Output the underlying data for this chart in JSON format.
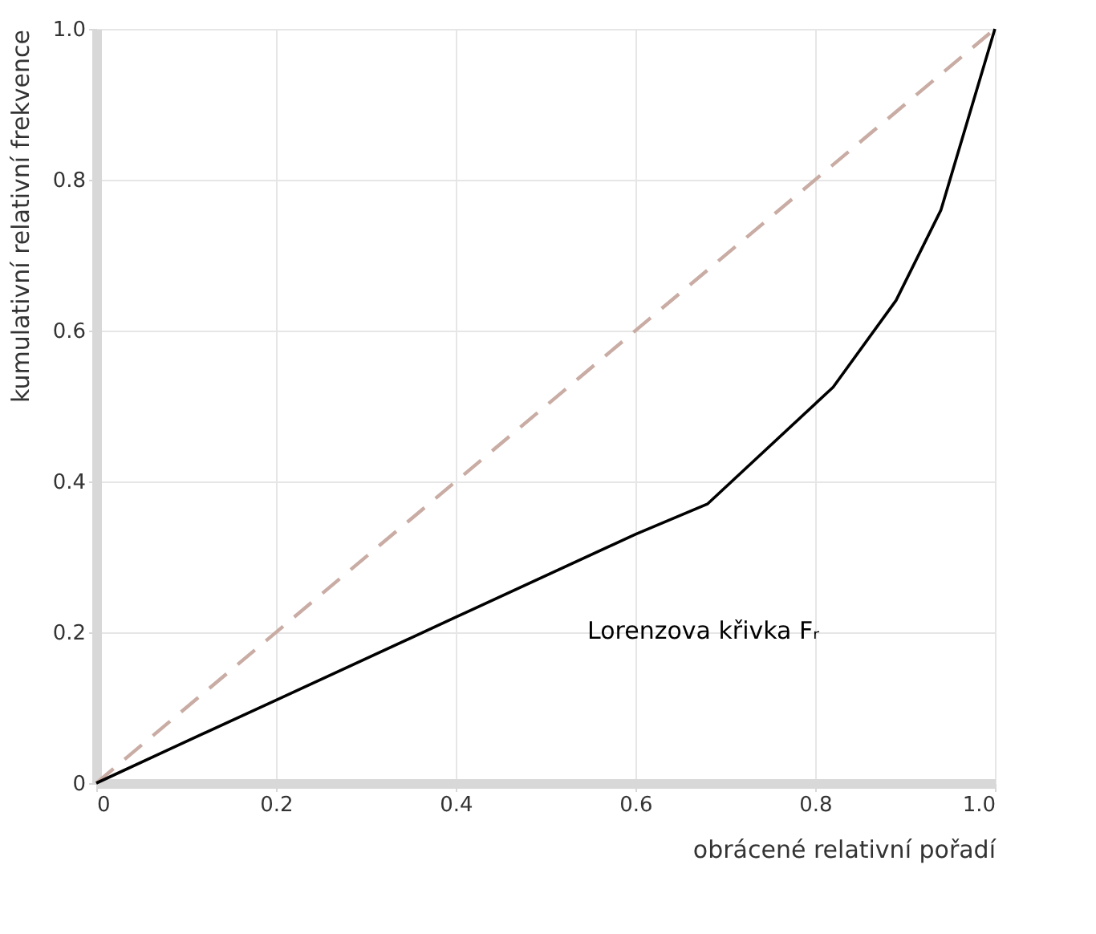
{
  "chart_data": {
    "type": "line",
    "xlabel": "obrácené relativní pořadí",
    "ylabel": "kumulativní relativní frekvence",
    "xlim": [
      0,
      1
    ],
    "ylim": [
      0,
      1
    ],
    "xticks": [
      0,
      0.2,
      0.4,
      0.6,
      0.8,
      {
        "value": 1,
        "label": "1.0"
      }
    ],
    "yticks": [
      0,
      0.2,
      0.4,
      0.6,
      0.8,
      {
        "value": 1,
        "label": "1.0"
      }
    ],
    "grid": true,
    "series": [
      {
        "color": "#c9aca4",
        "line_style": "dashed",
        "x": [
          0,
          1
        ],
        "values": [
          0,
          1
        ]
      },
      {
        "name": "Lorenzova křivka Fᵣ",
        "color": "#000000",
        "line_style": "solid",
        "x": [
          0,
          0.085,
          0.2,
          0.4,
          0.6,
          0.68,
          0.82,
          0.89,
          0.94,
          0.97,
          1
        ],
        "values": [
          0,
          0.047,
          0.11,
          0.22,
          0.33,
          0.37,
          0.525,
          0.64,
          0.76,
          0.88,
          1
        ]
      }
    ]
  }
}
